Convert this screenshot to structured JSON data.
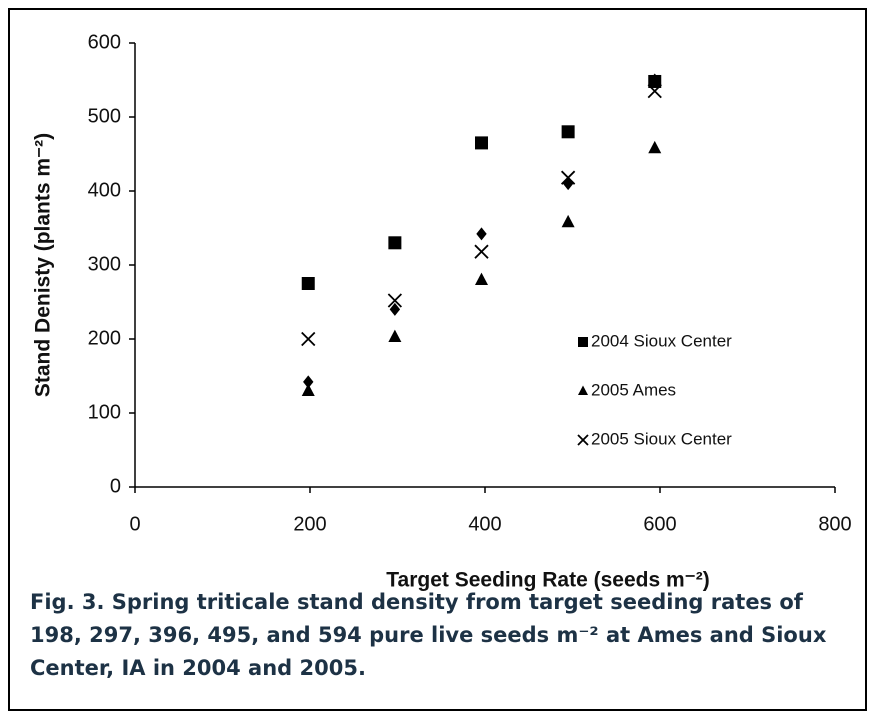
{
  "chart_data": {
    "type": "scatter",
    "x_label": "Target Seeding Rate (seeds m⁻²)",
    "y_label": "Stand Denisty (plants m⁻²)",
    "caption": "Fig. 3. Spring triticale stand density from target seeding rates of 198, 297, 396, 495, and 594 pure live seeds m⁻² at Ames and Sioux Center, IA in 2004 and 2005.",
    "x": [
      198,
      297,
      396,
      495,
      594
    ],
    "series": [
      {
        "name": "2004 Sioux Center",
        "marker": "square",
        "color": "#000000",
        "values": [
          275,
          330,
          465,
          480,
          548
        ]
      },
      {
        "name": "2005 Ames",
        "marker": "triangle",
        "color": "#000000",
        "values": [
          130,
          203,
          280,
          358,
          458
        ]
      },
      {
        "name": "2005 Sioux Center",
        "marker": "x",
        "color": "#000000",
        "values": [
          200,
          252,
          318,
          418,
          535
        ]
      },
      {
        "marker": "diamond",
        "color": "#000000",
        "values": [
          142,
          240,
          342,
          410,
          550
        ]
      }
    ],
    "xlim": [
      0,
      800
    ],
    "xticks": [
      0,
      200,
      400,
      600,
      800
    ],
    "ylim": [
      0,
      600
    ],
    "yticks": [
      0,
      100,
      200,
      300,
      400,
      500,
      600
    ],
    "grid": false
  }
}
